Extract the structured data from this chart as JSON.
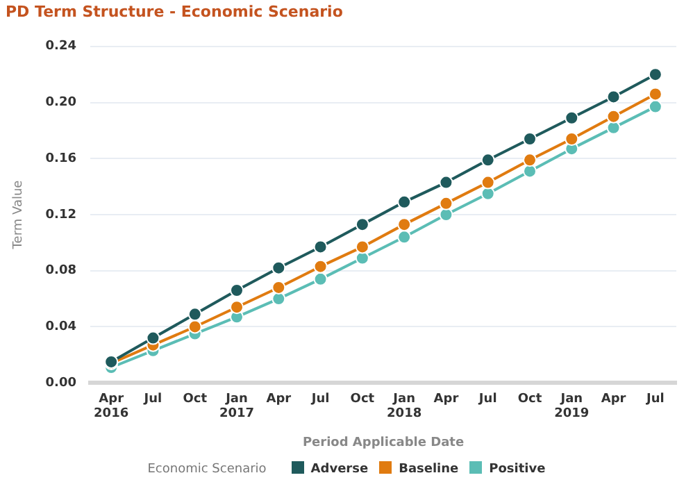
{
  "chart_data": {
    "type": "line",
    "title": "PD Term Structure - Economic Scenario",
    "xlabel": "Period Applicable Date",
    "ylabel": "Term Value",
    "legend_title": "Economic Scenario",
    "categories": [
      "Apr 2016",
      "Jul",
      "Oct",
      "Jan 2017",
      "Apr",
      "Jul",
      "Oct",
      "Jan 2018",
      "Apr",
      "Jul",
      "Oct",
      "Jan 2019",
      "Apr",
      "Jul"
    ],
    "series": [
      {
        "name": "Adverse",
        "color": "#1f5a5c",
        "values": [
          0.015,
          0.032,
          0.049,
          0.066,
          0.082,
          0.097,
          0.113,
          0.129,
          0.143,
          0.159,
          0.174,
          0.189,
          0.204,
          0.22
        ]
      },
      {
        "name": "Baseline",
        "color": "#e07b10",
        "values": [
          0.014,
          0.027,
          0.04,
          0.054,
          0.068,
          0.083,
          0.097,
          0.113,
          0.128,
          0.143,
          0.159,
          0.174,
          0.19,
          0.206
        ]
      },
      {
        "name": "Positive",
        "color": "#5bbdb5",
        "values": [
          0.011,
          0.023,
          0.035,
          0.047,
          0.06,
          0.074,
          0.089,
          0.104,
          0.12,
          0.135,
          0.151,
          0.167,
          0.182,
          0.197
        ]
      }
    ],
    "ylim": [
      0,
      0.24
    ],
    "yticks": [
      {
        "value": 0,
        "label": "0.00"
      },
      0.04,
      0.08,
      0.12,
      0.16,
      {
        "value": 0.2,
        "label": "0.20"
      },
      0.24
    ],
    "grid": "y",
    "legend": "bottom",
    "marker": "circle",
    "line_style": "solid"
  }
}
